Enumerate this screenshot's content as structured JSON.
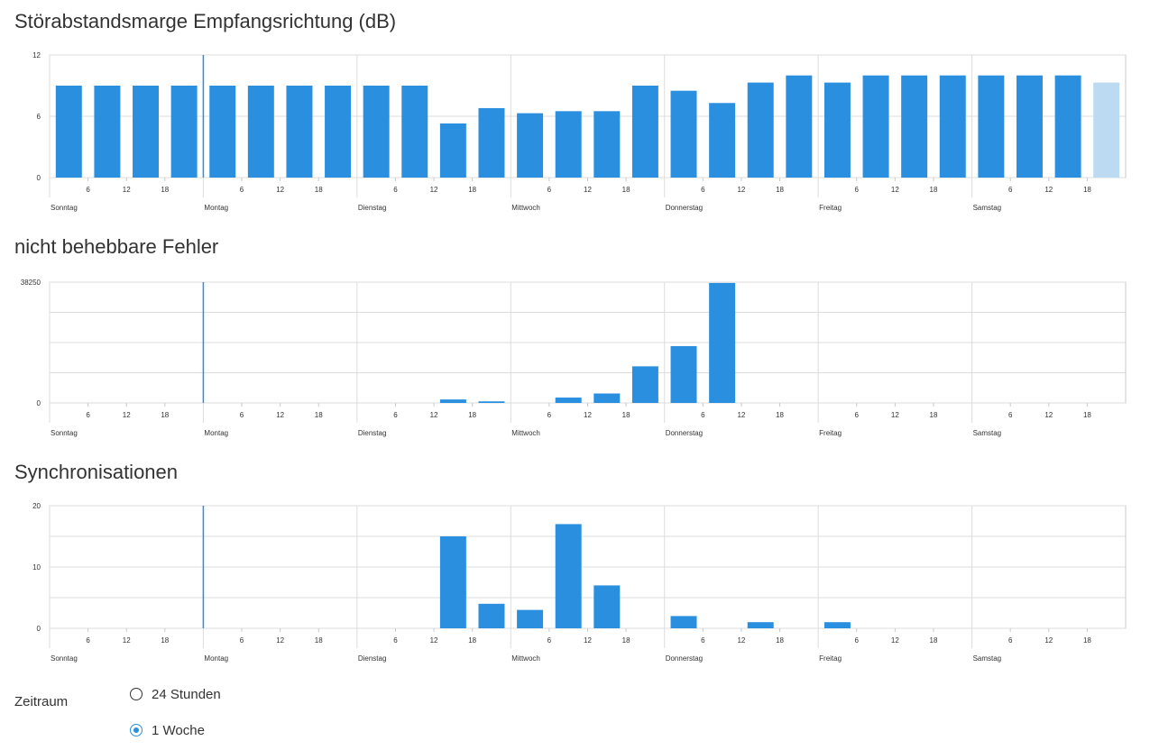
{
  "chart_data": [
    {
      "type": "bar",
      "title": "Störabstandsmarge Empfangsrichtung (dB)",
      "y_ticks": [
        "12",
        "6",
        "0"
      ],
      "ylim": [
        0,
        12
      ],
      "day_labels": [
        "Sonntag",
        "Montag",
        "Dienstag",
        "Mittwoch",
        "Donnerstag",
        "Freitag",
        "Samstag"
      ],
      "hour_labels": [
        "6",
        "12",
        "18"
      ],
      "values": [
        9,
        9,
        9,
        9,
        9,
        9,
        9,
        9,
        9,
        9,
        5.3,
        6.8,
        6.3,
        6.5,
        6.5,
        9,
        8.5,
        7.3,
        9.3,
        10,
        9.3,
        10,
        10,
        10,
        10,
        10,
        10,
        9.3
      ],
      "current_value_index": 27,
      "grid": true,
      "bar_color": "#2b8fe0",
      "current_bar_color": "#bcdaf2"
    },
    {
      "type": "bar",
      "title": "nicht behebbare Fehler",
      "y_ticks": [
        "38250",
        "",
        "",
        "",
        "0"
      ],
      "ylim": [
        0,
        38250
      ],
      "day_labels": [
        "Sonntag",
        "Montag",
        "Dienstag",
        "Mittwoch",
        "Donnerstag",
        "Freitag",
        "Samstag"
      ],
      "hour_labels": [
        "6",
        "12",
        "18"
      ],
      "values": [
        0,
        0,
        0,
        0,
        0,
        0,
        0,
        0,
        0,
        0,
        1100,
        500,
        0,
        1700,
        3000,
        11600,
        18000,
        38000,
        0,
        0,
        0,
        0,
        0,
        0,
        0,
        0,
        0,
        0
      ],
      "grid": true,
      "bar_color": "#2b8fe0"
    },
    {
      "type": "bar",
      "title": "Synchronisationen",
      "y_ticks": [
        "20",
        "",
        "10",
        "",
        "0"
      ],
      "ylim": [
        0,
        20
      ],
      "day_labels": [
        "Sonntag",
        "Montag",
        "Dienstag",
        "Mittwoch",
        "Donnerstag",
        "Freitag",
        "Samstag"
      ],
      "hour_labels": [
        "6",
        "12",
        "18"
      ],
      "values": [
        0,
        0,
        0,
        0,
        0,
        0,
        0,
        0,
        0,
        0,
        15,
        4,
        3,
        17,
        7,
        0,
        2,
        0,
        1,
        0,
        1,
        0,
        0,
        0,
        0,
        0,
        0,
        0
      ],
      "grid": true,
      "bar_color": "#2b8fe0"
    }
  ],
  "zeitraum": {
    "label": "Zeitraum",
    "options": [
      {
        "label": "24 Stunden",
        "checked": false
      },
      {
        "label": "1 Woche",
        "checked": true
      }
    ]
  },
  "colors": {
    "bar": "#2b8fe0",
    "current_bar": "#bcdaf2",
    "grid": "#dddddd",
    "axis": "#c8c8c8",
    "marker": "#2b8fe0",
    "text": "#333333"
  }
}
